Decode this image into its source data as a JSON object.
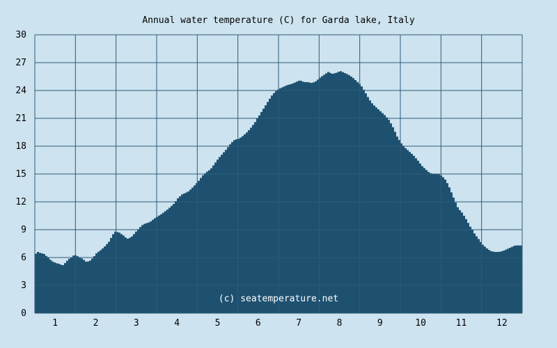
{
  "chart_data": {
    "type": "area",
    "title": "Annual water temperature (C) for Garda lake, Italy",
    "xlabel": "",
    "ylabel": "",
    "ylim": [
      0,
      30
    ],
    "xlim": [
      0.5,
      12.5
    ],
    "y_ticks": [
      "0",
      "3",
      "6",
      "9",
      "12",
      "15",
      "18",
      "21",
      "24",
      "27",
      "30"
    ],
    "x_ticks": [
      "1",
      "2",
      "3",
      "4",
      "5",
      "6",
      "7",
      "8",
      "9",
      "10",
      "11",
      "12"
    ],
    "grid": true,
    "watermark": "(c) seatemperature.net",
    "colors": {
      "background": "#cde3ef",
      "area": "#1e5170",
      "grid": "#2f5b78",
      "plot_bg": "#cde3ef"
    },
    "points": [
      {
        "x": 0.5,
        "y": 6.4
      },
      {
        "x": 0.55,
        "y": 6.6
      },
      {
        "x": 0.6,
        "y": 6.5
      },
      {
        "x": 0.7,
        "y": 6.4
      },
      {
        "x": 0.8,
        "y": 6.0
      },
      {
        "x": 0.9,
        "y": 5.6
      },
      {
        "x": 1.0,
        "y": 5.4
      },
      {
        "x": 1.1,
        "y": 5.3
      },
      {
        "x": 1.15,
        "y": 5.1
      },
      {
        "x": 1.2,
        "y": 5.3
      },
      {
        "x": 1.3,
        "y": 5.8
      },
      {
        "x": 1.4,
        "y": 6.1
      },
      {
        "x": 1.45,
        "y": 6.3
      },
      {
        "x": 1.5,
        "y": 6.2
      },
      {
        "x": 1.6,
        "y": 6.0
      },
      {
        "x": 1.7,
        "y": 5.7
      },
      {
        "x": 1.75,
        "y": 5.5
      },
      {
        "x": 1.85,
        "y": 5.7
      },
      {
        "x": 1.95,
        "y": 6.2
      },
      {
        "x": 2.0,
        "y": 6.5
      },
      {
        "x": 2.1,
        "y": 6.8
      },
      {
        "x": 2.2,
        "y": 7.2
      },
      {
        "x": 2.3,
        "y": 7.7
      },
      {
        "x": 2.4,
        "y": 8.5
      },
      {
        "x": 2.45,
        "y": 8.8
      },
      {
        "x": 2.55,
        "y": 8.7
      },
      {
        "x": 2.65,
        "y": 8.4
      },
      {
        "x": 2.75,
        "y": 8.0
      },
      {
        "x": 2.85,
        "y": 8.2
      },
      {
        "x": 2.95,
        "y": 8.7
      },
      {
        "x": 3.05,
        "y": 9.2
      },
      {
        "x": 3.15,
        "y": 9.6
      },
      {
        "x": 3.3,
        "y": 9.8
      },
      {
        "x": 3.45,
        "y": 10.3
      },
      {
        "x": 3.6,
        "y": 10.7
      },
      {
        "x": 3.75,
        "y": 11.2
      },
      {
        "x": 3.9,
        "y": 11.8
      },
      {
        "x": 4.0,
        "y": 12.4
      },
      {
        "x": 4.1,
        "y": 12.8
      },
      {
        "x": 4.25,
        "y": 13.1
      },
      {
        "x": 4.35,
        "y": 13.5
      },
      {
        "x": 4.5,
        "y": 14.2
      },
      {
        "x": 4.6,
        "y": 14.8
      },
      {
        "x": 4.7,
        "y": 15.2
      },
      {
        "x": 4.8,
        "y": 15.5
      },
      {
        "x": 4.9,
        "y": 16.1
      },
      {
        "x": 5.0,
        "y": 16.7
      },
      {
        "x": 5.1,
        "y": 17.2
      },
      {
        "x": 5.2,
        "y": 17.7
      },
      {
        "x": 5.3,
        "y": 18.3
      },
      {
        "x": 5.4,
        "y": 18.7
      },
      {
        "x": 5.5,
        "y": 18.8
      },
      {
        "x": 5.6,
        "y": 19.1
      },
      {
        "x": 5.7,
        "y": 19.5
      },
      {
        "x": 5.8,
        "y": 20.0
      },
      {
        "x": 5.9,
        "y": 20.6
      },
      {
        "x": 6.0,
        "y": 21.3
      },
      {
        "x": 6.1,
        "y": 22.0
      },
      {
        "x": 6.2,
        "y": 22.7
      },
      {
        "x": 6.3,
        "y": 23.4
      },
      {
        "x": 6.4,
        "y": 23.9
      },
      {
        "x": 6.5,
        "y": 24.2
      },
      {
        "x": 6.6,
        "y": 24.4
      },
      {
        "x": 6.7,
        "y": 24.6
      },
      {
        "x": 6.8,
        "y": 24.7
      },
      {
        "x": 6.9,
        "y": 24.9
      },
      {
        "x": 7.0,
        "y": 25.1
      },
      {
        "x": 7.1,
        "y": 24.9
      },
      {
        "x": 7.2,
        "y": 24.9
      },
      {
        "x": 7.3,
        "y": 24.8
      },
      {
        "x": 7.4,
        "y": 25.0
      },
      {
        "x": 7.5,
        "y": 25.4
      },
      {
        "x": 7.6,
        "y": 25.7
      },
      {
        "x": 7.7,
        "y": 26.0
      },
      {
        "x": 7.8,
        "y": 25.8
      },
      {
        "x": 7.9,
        "y": 25.9
      },
      {
        "x": 8.0,
        "y": 26.1
      },
      {
        "x": 8.1,
        "y": 25.9
      },
      {
        "x": 8.2,
        "y": 25.7
      },
      {
        "x": 8.3,
        "y": 25.4
      },
      {
        "x": 8.4,
        "y": 25.0
      },
      {
        "x": 8.5,
        "y": 24.6
      },
      {
        "x": 8.6,
        "y": 23.9
      },
      {
        "x": 8.7,
        "y": 23.1
      },
      {
        "x": 8.8,
        "y": 22.5
      },
      {
        "x": 8.9,
        "y": 22.1
      },
      {
        "x": 9.0,
        "y": 21.7
      },
      {
        "x": 9.1,
        "y": 21.3
      },
      {
        "x": 9.2,
        "y": 20.8
      },
      {
        "x": 9.3,
        "y": 20.0
      },
      {
        "x": 9.4,
        "y": 19.0
      },
      {
        "x": 9.5,
        "y": 18.3
      },
      {
        "x": 9.6,
        "y": 17.8
      },
      {
        "x": 9.7,
        "y": 17.4
      },
      {
        "x": 9.8,
        "y": 17.0
      },
      {
        "x": 9.9,
        "y": 16.5
      },
      {
        "x": 10.0,
        "y": 15.9
      },
      {
        "x": 10.1,
        "y": 15.5
      },
      {
        "x": 10.2,
        "y": 15.1
      },
      {
        "x": 10.3,
        "y": 15.0
      },
      {
        "x": 10.4,
        "y": 15.0
      },
      {
        "x": 10.5,
        "y": 14.8
      },
      {
        "x": 10.6,
        "y": 14.3
      },
      {
        "x": 10.7,
        "y": 13.4
      },
      {
        "x": 10.8,
        "y": 12.3
      },
      {
        "x": 10.9,
        "y": 11.3
      },
      {
        "x": 11.0,
        "y": 10.8
      },
      {
        "x": 11.1,
        "y": 10.1
      },
      {
        "x": 11.2,
        "y": 9.3
      },
      {
        "x": 11.3,
        "y": 8.6
      },
      {
        "x": 11.4,
        "y": 8.0
      },
      {
        "x": 11.5,
        "y": 7.4
      },
      {
        "x": 11.6,
        "y": 7.0
      },
      {
        "x": 11.7,
        "y": 6.7
      },
      {
        "x": 11.8,
        "y": 6.6
      },
      {
        "x": 11.9,
        "y": 6.6
      },
      {
        "x": 12.0,
        "y": 6.7
      },
      {
        "x": 12.1,
        "y": 6.9
      },
      {
        "x": 12.2,
        "y": 7.1
      },
      {
        "x": 12.3,
        "y": 7.3
      },
      {
        "x": 12.4,
        "y": 7.3
      },
      {
        "x": 12.5,
        "y": 7.3
      }
    ]
  }
}
